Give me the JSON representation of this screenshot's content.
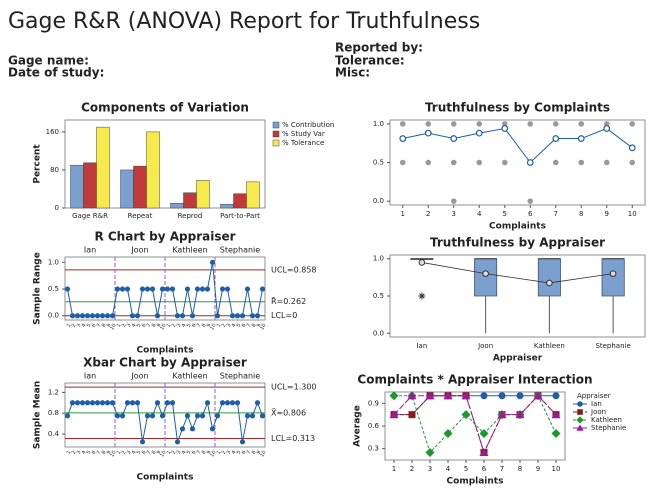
{
  "header": {
    "title": "Gage R&R (ANOVA) Report for Truthfulness",
    "gage_name": "Gage name:",
    "date_of_study": "Date of study:",
    "reported_by": "Reported by:",
    "tolerance": "Tolerance:",
    "misc": "Misc:"
  },
  "chart_data": [
    {
      "type": "bar",
      "title": "Components of Variation",
      "categories": [
        "Gage R&R",
        "Repeat",
        "Reprod",
        "Part-to-Part"
      ],
      "series": [
        {
          "name": "% Contribution",
          "color": "#7b9fcf",
          "values": [
            90,
            80,
            10,
            8
          ]
        },
        {
          "name": "% Study Var",
          "color": "#c0393b",
          "values": [
            95,
            88,
            32,
            30
          ]
        },
        {
          "name": "% Tolerance",
          "color": "#f6eb4a",
          "values": [
            170,
            160,
            58,
            55
          ]
        }
      ],
      "ylim": [
        0,
        185
      ],
      "yticks": [
        0,
        80,
        160
      ],
      "ylabel": "Percent"
    },
    {
      "type": "dot_mean",
      "title": "Truthfulness by Complaints",
      "x": [
        1,
        2,
        3,
        4,
        5,
        6,
        7,
        8,
        9,
        10
      ],
      "means": [
        0.81,
        0.88,
        0.81,
        0.88,
        0.94,
        0.5,
        0.81,
        0.81,
        0.94,
        0.69
      ],
      "obs_x": [
        1,
        1,
        2,
        2,
        3,
        3,
        3,
        4,
        4,
        5,
        5,
        6,
        6,
        6,
        7,
        7,
        8,
        8,
        9,
        9,
        10,
        10
      ],
      "obs_y": [
        1,
        0.5,
        1,
        0.5,
        1,
        0.5,
        0,
        1,
        0.5,
        1,
        0.5,
        1,
        0.5,
        0,
        1,
        0.5,
        1,
        0.5,
        1,
        0.5,
        1,
        0.5
      ],
      "color": "#1f5fa8",
      "obs_color": "#999999",
      "xlim": [
        0.5,
        10.5
      ],
      "xticks": [
        1,
        2,
        3,
        4,
        5,
        6,
        7,
        8,
        9,
        10
      ],
      "ylim": [
        -0.05,
        1.05
      ],
      "yticks": [
        {
          "value": 0,
          "label": "0.0"
        },
        {
          "value": 0.5,
          "label": "0.5"
        },
        {
          "value": 1,
          "label": "1.0"
        }
      ],
      "xlabel": "Complaints"
    },
    {
      "type": "control",
      "title": "R Chart by Appraiser",
      "groups": [
        "Ian",
        "Joon",
        "Kathleen",
        "Stephanie"
      ],
      "x_labels": [
        1,
        2,
        3,
        4,
        5,
        6,
        7,
        8,
        9,
        10
      ],
      "values": [
        0.5,
        0,
        0,
        0,
        0,
        0,
        0,
        0,
        0,
        0,
        0.5,
        0.5,
        0.5,
        0,
        0,
        0.5,
        0.5,
        0.5,
        0,
        0.5,
        0.5,
        0.5,
        0,
        0,
        0.5,
        0,
        0.5,
        0.5,
        0.5,
        1,
        0,
        0.5,
        0.5,
        0,
        0,
        0,
        0.5,
        0,
        0,
        0.5
      ],
      "ucl": 0.858,
      "center": 0.262,
      "lcl": 0,
      "ucl_label": "UCL=0.858",
      "center_label": "R̄=0.262",
      "lcl_label": "LCL=0",
      "ylim": [
        -0.08,
        1.1
      ],
      "yticks": [
        {
          "value": 0,
          "label": "0.0"
        },
        {
          "value": 0.5,
          "label": "0.5"
        },
        {
          "value": 1,
          "label": "1.0"
        }
      ],
      "xlabel": "Complaints",
      "ylabel": "Sample Range",
      "color": "#1f5fa8",
      "center_color": "#2a9a3a",
      "limit_color": "#a02828",
      "divider_color": "#9a5ad0"
    },
    {
      "type": "control",
      "title": "Xbar Chart by Appraiser",
      "groups": [
        "Ian",
        "Joon",
        "Kathleen",
        "Stephanie"
      ],
      "x_labels": [
        1,
        2,
        3,
        4,
        5,
        6,
        7,
        8,
        9,
        10
      ],
      "values": [
        0.75,
        1,
        1,
        1,
        1,
        1,
        1,
        1,
        1,
        1,
        0.75,
        0.75,
        1,
        1,
        1,
        0.25,
        0.75,
        0.75,
        1,
        0.75,
        1,
        1,
        0.25,
        0.5,
        0.75,
        0.5,
        0.75,
        0.75,
        1,
        0.5,
        0.75,
        1,
        1,
        1,
        1,
        0.25,
        0.75,
        0.75,
        1,
        0.75
      ],
      "ucl": 1.3,
      "center": 0.806,
      "lcl": 0.313,
      "ucl_label": "UCL=1.300",
      "center_label": "X̄=0.806",
      "lcl_label": "LCL=0.313",
      "ylim": [
        0.15,
        1.38
      ],
      "yticks": [
        {
          "value": 0.4,
          "label": "0.4"
        },
        {
          "value": 0.8,
          "label": "0.8"
        },
        {
          "value": 1.2,
          "label": "1.2"
        }
      ],
      "xlabel": "Complaints",
      "ylabel": "Sample Mean",
      "color": "#1f5fa8",
      "center_color": "#2a9a3a",
      "limit_color": "#a02828",
      "divider_color": "#9a5ad0"
    },
    {
      "type": "box",
      "title": "Truthfulness by Appraiser",
      "categories": [
        "Ian",
        "Joon",
        "Kathleen",
        "Stephanie"
      ],
      "boxes": [
        {
          "min": 1,
          "q1": 1,
          "median": 1,
          "q3": 1,
          "max": 1,
          "mean": 0.95,
          "outliers": [
            0.5
          ]
        },
        {
          "min": 0,
          "q1": 0.5,
          "median": 1,
          "q3": 1,
          "max": 1,
          "mean": 0.8,
          "outliers": []
        },
        {
          "min": 0,
          "q1": 0.5,
          "median": 1,
          "q3": 1,
          "max": 1,
          "mean": 0.675,
          "outliers": []
        },
        {
          "min": 0,
          "q1": 0.5,
          "median": 1,
          "q3": 1,
          "max": 1,
          "mean": 0.8,
          "outliers": []
        }
      ],
      "color": "#7b9fcf",
      "ylim": [
        -0.05,
        1.05
      ],
      "yticks": [
        {
          "value": 0,
          "label": "0.0"
        },
        {
          "value": 0.5,
          "label": "0.5"
        },
        {
          "value": 1,
          "label": "1.0"
        }
      ],
      "xlabel": "Appraiser"
    },
    {
      "type": "line",
      "title": "Complaints * Appraiser Interaction",
      "x": [
        1,
        2,
        3,
        4,
        5,
        6,
        7,
        8,
        9,
        10
      ],
      "series": [
        {
          "name": "Ian",
          "color": "#1f5fa8",
          "marker": "circle",
          "values": [
            0.75,
            0.75,
            1,
            1,
            1,
            1,
            1,
            1,
            1,
            1
          ]
        },
        {
          "name": "Joon",
          "color": "#8b1a1a",
          "marker": "square",
          "values": [
            0.75,
            0.75,
            1,
            1,
            1,
            0.25,
            0.75,
            0.75,
            1,
            0.75
          ]
        },
        {
          "name": "Kathleen",
          "color": "#1a9a2a",
          "marker": "diamond",
          "values": [
            1,
            1,
            0.25,
            0.5,
            0.75,
            0.5,
            0.75,
            0.75,
            1,
            0.5
          ]
        },
        {
          "name": "Stephanie",
          "color": "#9a1a9a",
          "marker": "triangle",
          "values": [
            0.75,
            1,
            1,
            1,
            1,
            0.25,
            0.75,
            0.75,
            1,
            0.75
          ]
        }
      ],
      "xlim": [
        0.5,
        10.5
      ],
      "xticks": [
        1,
        2,
        3,
        4,
        5,
        6,
        7,
        8,
        9,
        10
      ],
      "ylim": [
        0.15,
        1.05
      ],
      "yticks": [
        {
          "value": 0.3,
          "label": "0.3"
        },
        {
          "value": 0.6,
          "label": "0.6"
        },
        {
          "value": 0.9,
          "label": "0.9"
        }
      ],
      "xlabel": "Complaints",
      "ylabel": "Average",
      "legend_title": "Appraiser"
    }
  ]
}
